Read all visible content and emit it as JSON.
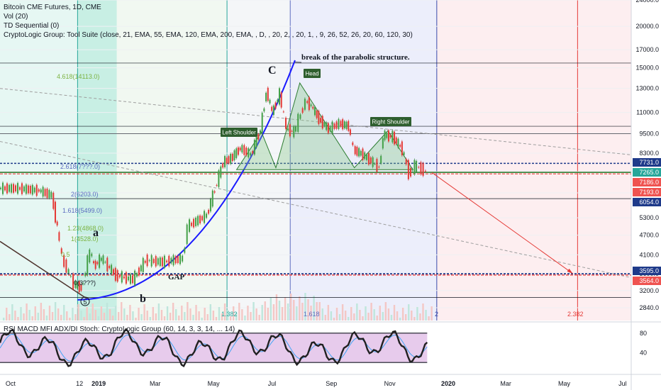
{
  "header": {
    "title": "Bitcoin CME Futures, 1D, CME",
    "indicators": [
      "Vol (20)",
      "TD Sequential (0)",
      "CryptoLogic Group: Tool Suite (close, 21, EMA, 55, EMA, 120, EMA, 200, EMA, , D, , 20, 2, , 20, 1, , 9, 26, 52, 26, 20, 60, 120, 30)"
    ]
  },
  "oscillator": {
    "title": "RSI MACD MFI ADX/DI Stoch: CryptoLogic Group (60, 14, 3, 3, 14, ... 14)",
    "ticks": [
      "80",
      "40"
    ],
    "band_color": "#e1bee7"
  },
  "annotations": {
    "break_note": "break of the parabolic structure.",
    "head": "Head",
    "left_shoulder": "Left Shoulder",
    "right_shoulder": "Right Shoulder",
    "gap": "GAP",
    "wave_a": "a",
    "wave_b": "b",
    "wave_c": "C",
    "wave_5": "5"
  },
  "fib_labels": [
    "4.618(14113.0)",
    "2.618(7???.0)",
    "2(6203.0)",
    "1.618(5499.0)",
    "1.23(4868.0)",
    "1(4528.0)",
    "0.5",
    "0(3???)",
    "1.382",
    "1.618",
    "2",
    "2.382"
  ],
  "price_tags": [
    {
      "text": "7731.0",
      "color": "#1e3a8a"
    },
    {
      "text": "7265.0",
      "color": "#26a69a"
    },
    {
      "text": "7186.0",
      "color": "#ef5350"
    },
    {
      "text": "7193.0",
      "color": "#ef5350"
    },
    {
      "text": "6054.0",
      "color": "#1e3a8a"
    },
    {
      "text": "3595.0",
      "color": "#1e3a8a"
    },
    {
      "text": "3564.0",
      "color": "#ef5350"
    }
  ],
  "chart_data": {
    "type": "line",
    "title": "Bitcoin CME Futures, 1D, CME",
    "xlabel": "",
    "ylabel": "",
    "y_scale": "log",
    "ylim": [
      2600,
      24000
    ],
    "y_ticks": [
      24000,
      20000,
      17000,
      15000,
      13000,
      11000,
      9500,
      8300,
      7300,
      6300,
      5300,
      4700,
      4100,
      3600,
      3200,
      2840
    ],
    "x_ticks": [
      "Oct",
      "12",
      "2019",
      "Mar",
      "May",
      "Jul",
      "Sep",
      "Nov",
      "2020",
      "Mar",
      "May",
      "Jul"
    ],
    "x_range": [
      "2018-09-20",
      "2020-07-10"
    ],
    "series": [
      {
        "x": [
          "2018-09-20",
          "2018-10-10",
          "2018-11-01",
          "2018-11-14",
          "2018-11-20",
          "2018-11-25",
          "2018-12-07",
          "2018-12-15",
          "2018-12-24",
          "2018-12-28",
          "2019-01-05",
          "2019-01-20",
          "2019-02-07",
          "2019-02-20",
          "2019-03-10",
          "2019-03-31",
          "2019-04-05",
          "2019-04-25",
          "2019-05-12",
          "2019-05-20",
          "2019-05-30",
          "2019-06-10",
          "2019-06-20",
          "2019-06-26",
          "2019-07-02",
          "2019-07-10",
          "2019-07-17",
          "2019-07-25",
          "2019-08-06",
          "2019-08-12",
          "2019-08-20",
          "2019-08-30",
          "2019-09-10",
          "2019-09-20",
          "2019-09-25",
          "2019-10-05",
          "2019-10-22",
          "2019-10-26",
          "2019-11-05",
          "2019-11-15",
          "2019-11-22",
          "2019-11-28",
          "2019-12-05",
          "2019-12-10"
        ],
        "values": [
          6500,
          6500,
          6400,
          6200,
          4900,
          4000,
          3350,
          3250,
          4200,
          3800,
          4000,
          3550,
          3450,
          3950,
          3900,
          4000,
          5000,
          5400,
          7800,
          8000,
          8600,
          8200,
          9800,
          12800,
          11000,
          12500,
          9800,
          9600,
          11900,
          11500,
          10500,
          9800,
          10200,
          10000,
          8500,
          8200,
          7500,
          9400,
          9300,
          8500,
          7200,
          7600,
          7450,
          7300
        ]
      }
    ],
    "reference_levels": [
      7731.0,
      7265.0,
      7186.0,
      7193.0,
      6054.0,
      3595.0,
      3564.0
    ],
    "oscillator_ylim": [
      0,
      100
    ]
  }
}
